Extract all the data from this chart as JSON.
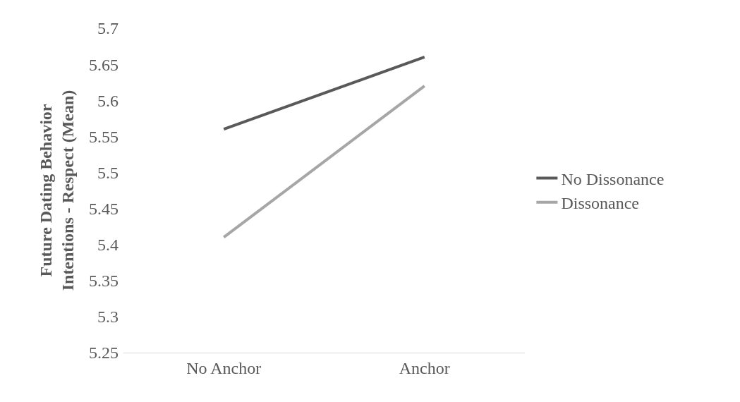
{
  "chart_data": {
    "type": "line",
    "ylabel": "Future Dating Behavior\nIntentions - Respect (Mean)",
    "categories": [
      "No Anchor",
      "Anchor"
    ],
    "series": [
      {
        "name": "No Dissonance",
        "color": "#595959",
        "values": [
          5.56,
          5.66
        ]
      },
      {
        "name": "Dissonance",
        "color": "#a6a6a6",
        "values": [
          5.41,
          5.62
        ]
      }
    ],
    "ylim": [
      5.25,
      5.7
    ],
    "yticks": [
      5.25,
      5.3,
      5.35,
      5.4,
      5.45,
      5.5,
      5.55,
      5.6,
      5.65,
      5.7
    ],
    "grid": false,
    "legend": "right",
    "marker": "none",
    "line_style": "solid"
  }
}
